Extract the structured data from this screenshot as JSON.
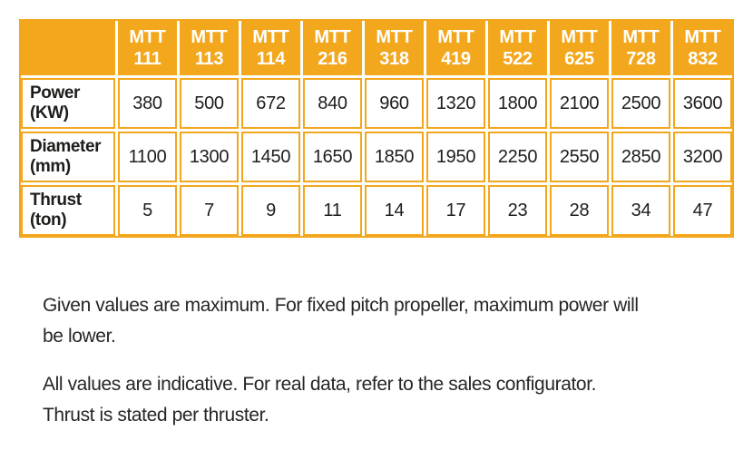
{
  "colors": {
    "accent_orange": "#F2A71D",
    "text_dark": "#1d1d1b",
    "header_text": "#ffffff"
  },
  "table": {
    "columns": [
      {
        "line1": "MTT",
        "line2": "111"
      },
      {
        "line1": "MTT",
        "line2": "113"
      },
      {
        "line1": "MTT",
        "line2": "114"
      },
      {
        "line1": "MTT",
        "line2": "216"
      },
      {
        "line1": "MTT",
        "line2": "318"
      },
      {
        "line1": "MTT",
        "line2": "419"
      },
      {
        "line1": "MTT",
        "line2": "522"
      },
      {
        "line1": "MTT",
        "line2": "625"
      },
      {
        "line1": "MTT",
        "line2": "728"
      },
      {
        "line1": "MTT",
        "line2": "832"
      }
    ],
    "rows": [
      {
        "label_line1": "Power",
        "label_line2": "(KW)",
        "values": [
          "380",
          "500",
          "672",
          "840",
          "960",
          "1320",
          "1800",
          "2100",
          "2500",
          "3600"
        ]
      },
      {
        "label_line1": "Diameter",
        "label_line2": "(mm)",
        "values": [
          "1100",
          "1300",
          "1450",
          "1650",
          "1850",
          "1950",
          "2250",
          "2550",
          "2850",
          "3200"
        ]
      },
      {
        "label_line1": "Thrust",
        "label_line2": "(ton)",
        "values": [
          "5",
          "7",
          "9",
          "11",
          "14",
          "17",
          "23",
          "28",
          "34",
          "47"
        ]
      }
    ]
  },
  "notes": [
    {
      "lines": [
        "Given values are maximum. For fixed pitch propeller, maximum power will",
        "be lower."
      ]
    },
    {
      "lines": [
        "All values are indicative. For real data, refer to the sales configurator.",
        "Thrust is stated per thruster."
      ]
    }
  ]
}
